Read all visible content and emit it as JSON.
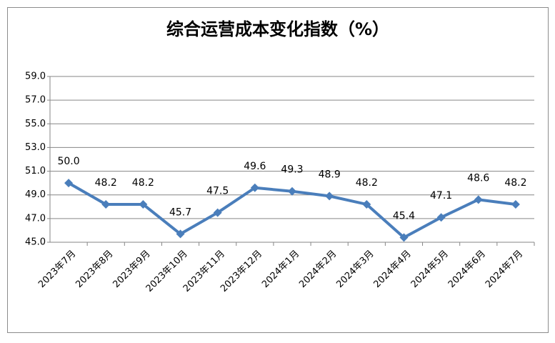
{
  "chart_data": {
    "type": "line",
    "title": "综合运营成本变化指数（%）",
    "categories": [
      "2023年7月",
      "2023年8月",
      "2023年9月",
      "2023年10月",
      "2023年11月",
      "2023年12月",
      "2024年1月",
      "2024年2月",
      "2024年3月",
      "2024年4月",
      "2024年5月",
      "2024年6月",
      "2024年7月"
    ],
    "values": [
      50.0,
      48.2,
      48.2,
      45.7,
      47.5,
      49.6,
      49.3,
      48.9,
      48.2,
      45.4,
      47.1,
      48.6,
      48.2
    ],
    "value_labels": [
      "50.0",
      "48.2",
      "48.2",
      "45.7",
      "47.5",
      "49.6",
      "49.3",
      "48.9",
      "48.2",
      "45.4",
      "47.1",
      "48.6",
      "48.2"
    ],
    "color": "#4a7ebb",
    "ylim": [
      45,
      59
    ],
    "yticks": [
      {
        "value": 45,
        "label": "45.0"
      },
      {
        "value": 47,
        "label": "47.0"
      },
      {
        "value": 49,
        "label": "49.0"
      },
      {
        "value": 51,
        "label": "51.0"
      },
      {
        "value": 53,
        "label": "53.0"
      },
      {
        "value": 55,
        "label": "55.0"
      },
      {
        "value": 57,
        "label": "57.0"
      },
      {
        "value": 59,
        "label": "59.0"
      }
    ],
    "grid": true
  }
}
